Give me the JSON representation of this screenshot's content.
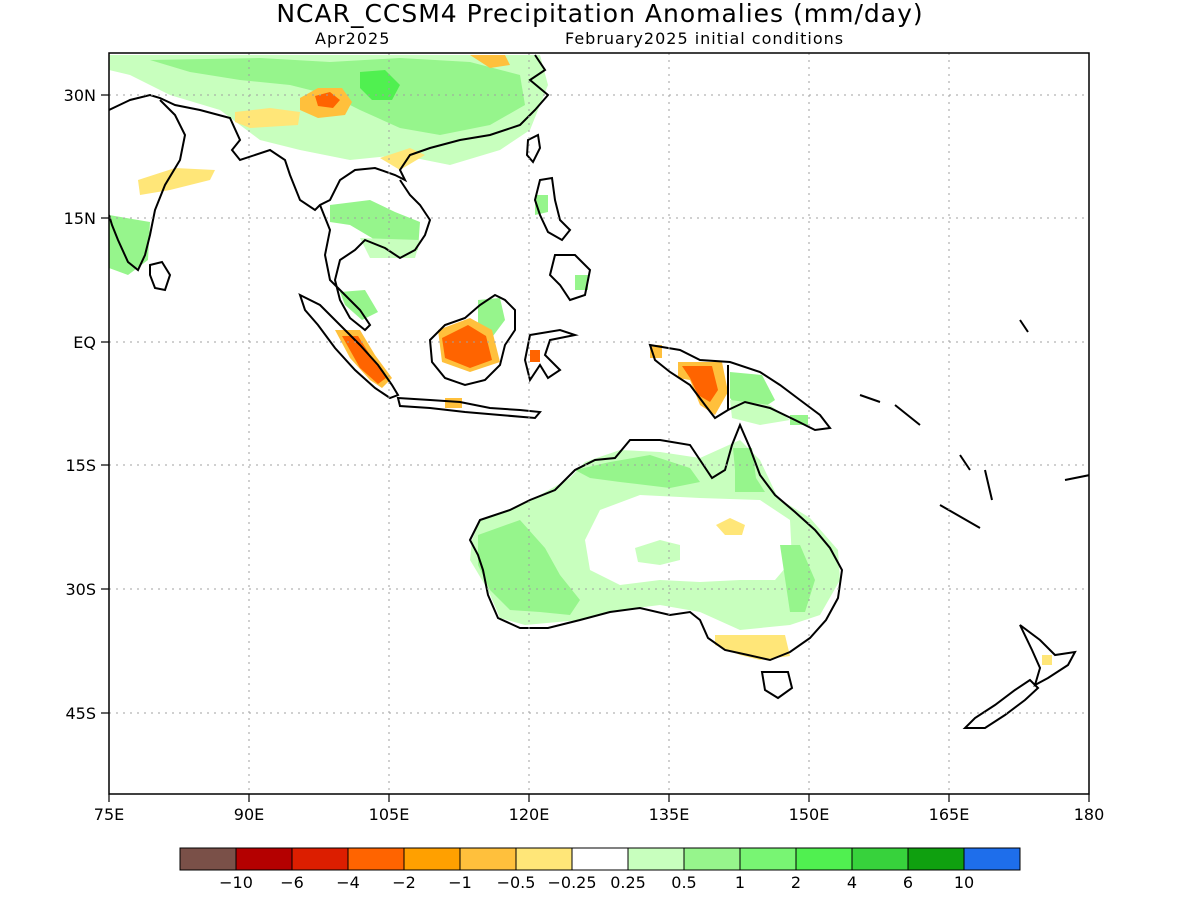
{
  "title": "NCAR_CCSM4 Precipitation Anomalies (mm/day)",
  "subtitle_left": "Apr2025",
  "subtitle_right": "February2025 initial conditions",
  "axes": {
    "lat_labels": [
      "30N",
      "15N",
      "EQ",
      "15S",
      "30S",
      "45S"
    ],
    "lon_labels": [
      "75E",
      "90E",
      "105E",
      "120E",
      "135E",
      "150E",
      "165E",
      "180"
    ]
  },
  "colorbar": {
    "colors": [
      "#7a5048",
      "#b40000",
      "#dc1e00",
      "#ff6400",
      "#ffa000",
      "#ffc03c",
      "#ffe678",
      "#ffffff",
      "#c8ffbe",
      "#96f58c",
      "#78f573",
      "#50f050",
      "#37d23c",
      "#0fa00f",
      "#1e6eeb"
    ],
    "labels": [
      "−10",
      "−6",
      "−4",
      "−2",
      "−1",
      "−0.5",
      "−0.25",
      "0.25",
      "0.5",
      "1",
      "2",
      "4",
      "6",
      "10"
    ]
  }
}
